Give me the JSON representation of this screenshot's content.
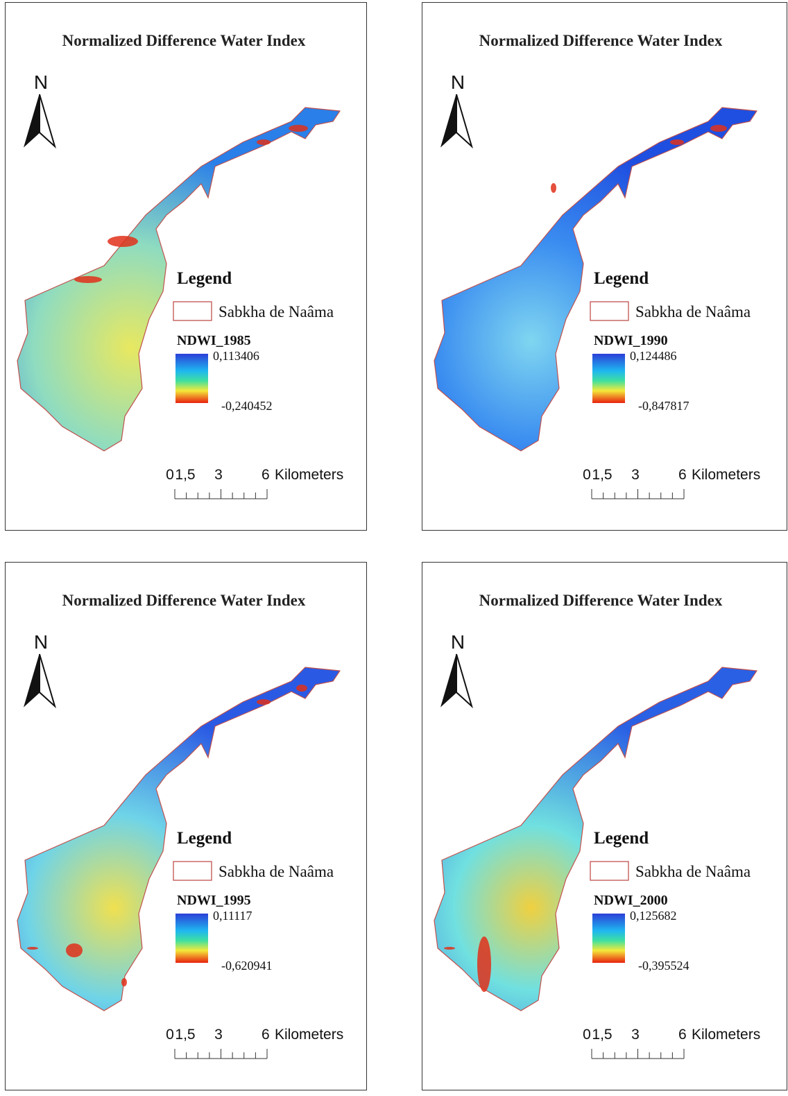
{
  "panels": [
    {
      "title": "Normalized Difference Water Index",
      "north": "N",
      "legend_title": "Legend",
      "boundary_label": "Sabkha de Naâma",
      "layer": "NDWI_1985",
      "high": "0,113406",
      "low": "-0,240452",
      "scale_ticks": [
        "0",
        "1,5",
        "3",
        "6"
      ],
      "scale_unit": "Kilometers"
    },
    {
      "title": "Normalized Difference Water Index",
      "north": "N",
      "legend_title": "Legend",
      "boundary_label": "Sabkha de Naâma",
      "layer": "NDWI_1990",
      "high": "0,124486",
      "low": "-0,847817",
      "scale_ticks": [
        "0",
        "1,5",
        "3",
        "6"
      ],
      "scale_unit": "Kilometers"
    },
    {
      "title": "Normalized Difference Water Index",
      "north": "N",
      "legend_title": "Legend",
      "boundary_label": "Sabkha de Naâma",
      "layer": "NDWI_1995",
      "high": "0,11117",
      "low": "-0,620941",
      "scale_ticks": [
        "0",
        "1,5",
        "3",
        "6"
      ],
      "scale_unit": "Kilometers"
    },
    {
      "title": "Normalized Difference Water Index",
      "north": "N",
      "legend_title": "Legend",
      "boundary_label": "Sabkha de Naâma",
      "layer": "NDWI_2000",
      "high": "0,125682",
      "low": "-0,395524",
      "scale_ticks": [
        "0",
        "1,5",
        "3",
        "6"
      ],
      "scale_unit": "Kilometers"
    }
  ]
}
